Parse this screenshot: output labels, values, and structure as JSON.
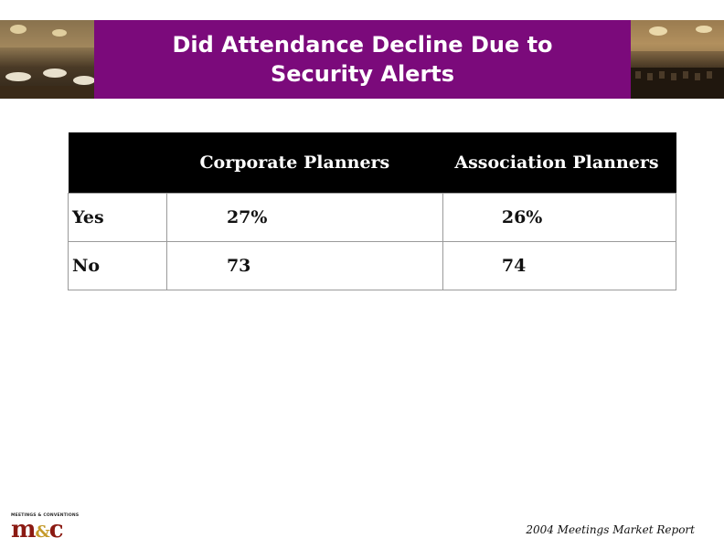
{
  "slide": {
    "title": "Did Attendance Decline Due to Security Alerts",
    "footer": "2004 Meetings Market Report"
  },
  "logo": {
    "tagline": "MEETINGS & CONVENTIONS",
    "mark_m": "m",
    "mark_amp": "&",
    "mark_c": "c"
  },
  "table": {
    "headers": [
      "",
      "Corporate Planners",
      "Association Planners"
    ],
    "rows": [
      {
        "label": "Yes",
        "corporate": "27%",
        "association": "26%"
      },
      {
        "label": "No",
        "corporate": "73",
        "association": "74"
      }
    ]
  },
  "colors": {
    "title_band": "#7b0a7b",
    "table_header": "#000000"
  }
}
